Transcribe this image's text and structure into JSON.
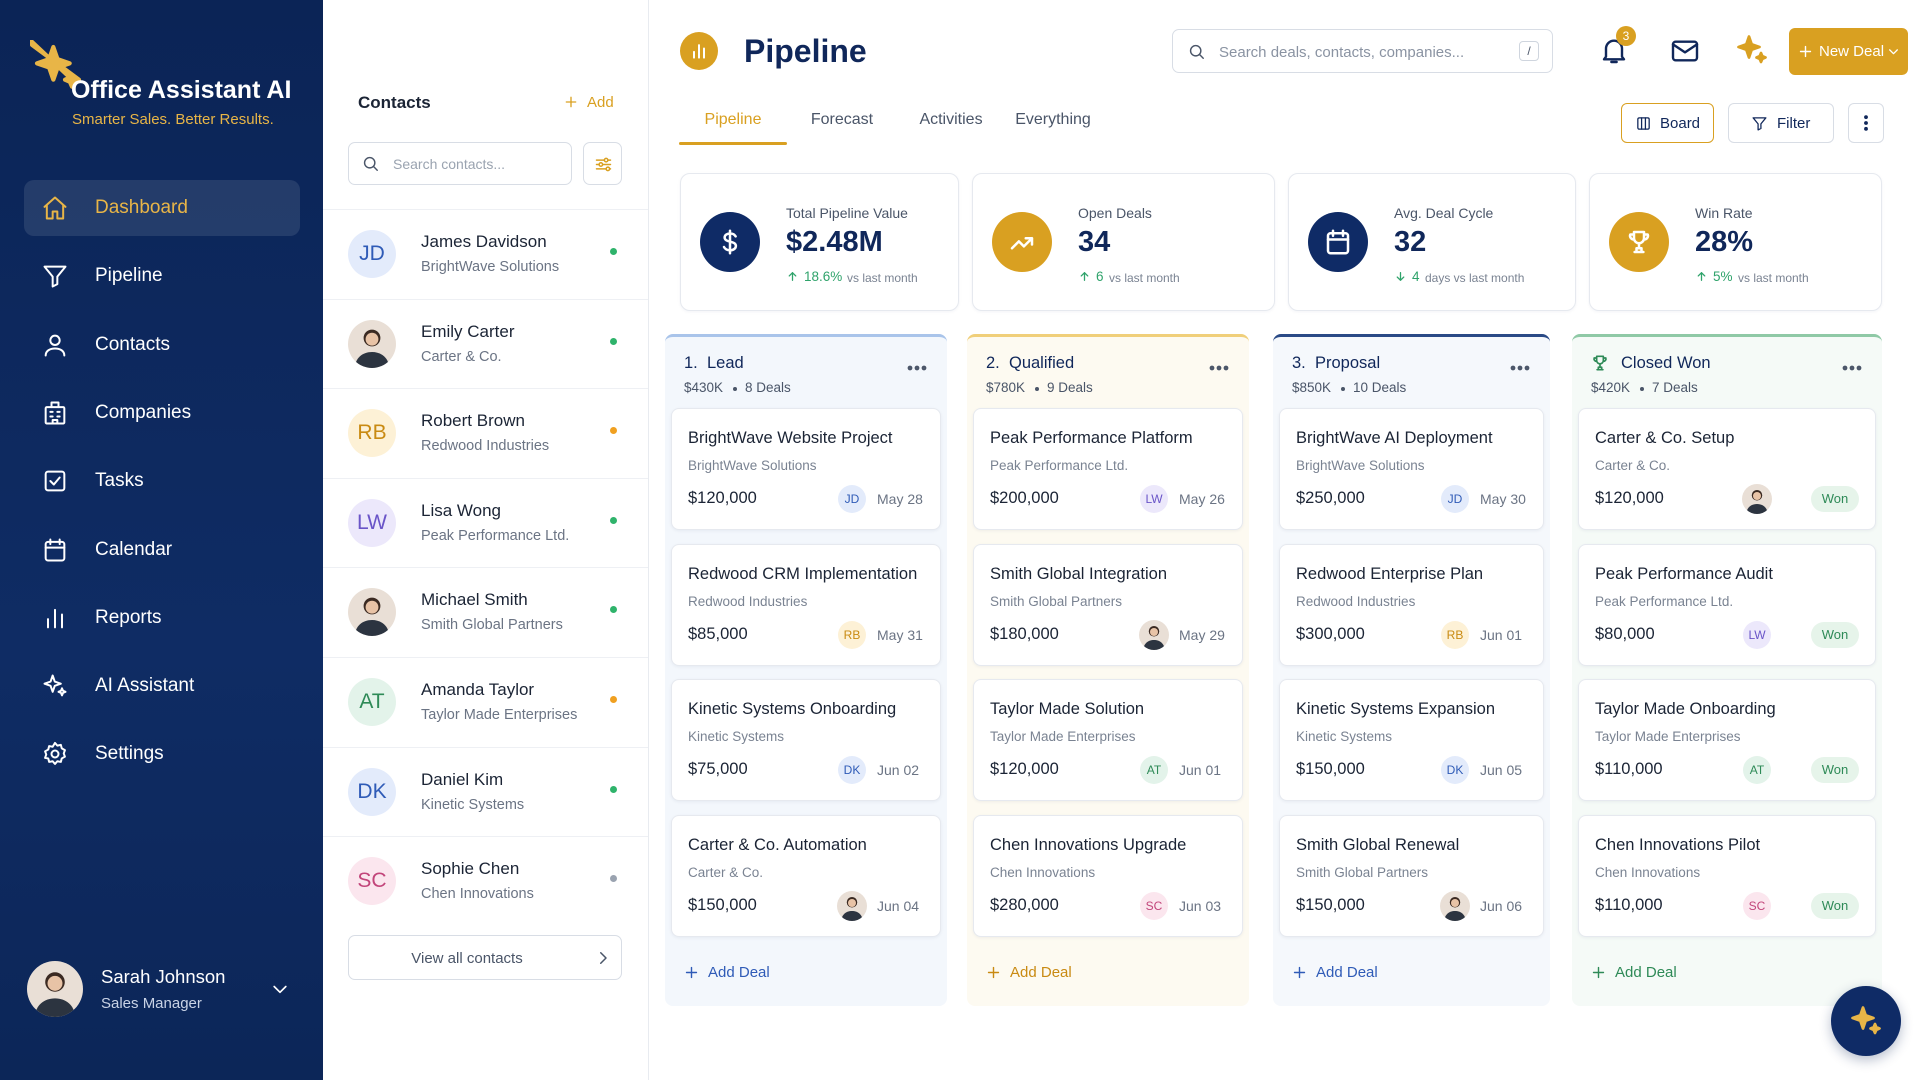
{
  "brand": {
    "name": "Office Assistant AI",
    "tagline": "Smarter Sales. Better Results."
  },
  "nav": [
    {
      "label": "Dashboard",
      "active": true
    },
    {
      "label": "Pipeline"
    },
    {
      "label": "Contacts"
    },
    {
      "label": "Companies"
    },
    {
      "label": "Tasks"
    },
    {
      "label": "Calendar"
    },
    {
      "label": "Reports"
    },
    {
      "label": "AI Assistant"
    },
    {
      "label": "Settings"
    }
  ],
  "user": {
    "name": "Sarah Johnson",
    "role": "Sales Manager"
  },
  "contacts": {
    "title": "Contacts",
    "add": "Add",
    "search_placeholder": "Search contacts...",
    "view_all": "View all contacts",
    "items": [
      {
        "initials": "JD",
        "name": "James Davidson",
        "company": "BrightWave Solutions",
        "status_color": "#2fb36b",
        "avatar_bg": "#e3ebfb",
        "avatar_fg": "#2f5bb7"
      },
      {
        "name": "Emily Carter",
        "company": "Carter & Co.",
        "status_color": "#2fb36b"
      },
      {
        "initials": "RB",
        "name": "Robert Brown",
        "company": "Redwood Industries",
        "status_color": "#f0a020",
        "avatar_bg": "#fdf1d6",
        "avatar_fg": "#c98a12"
      },
      {
        "initials": "LW",
        "name": "Lisa Wong",
        "company": "Peak Performance Ltd.",
        "status_color": "#2fb36b",
        "avatar_bg": "#ece8fb",
        "avatar_fg": "#6a55c8"
      },
      {
        "name": "Michael Smith",
        "company": "Smith Global Partners",
        "status_color": "#2fb36b"
      },
      {
        "initials": "AT",
        "name": "Amanda Taylor",
        "company": "Taylor Made Enterprises",
        "status_color": "#f0a020",
        "avatar_bg": "#e3f3ea",
        "avatar_fg": "#2e8a57"
      },
      {
        "initials": "DK",
        "name": "Daniel Kim",
        "company": "Kinetic Systems",
        "status_color": "#2fb36b",
        "avatar_bg": "#e3ebfb",
        "avatar_fg": "#2f5bb7"
      },
      {
        "initials": "SC",
        "name": "Sophie Chen",
        "company": "Chen Innovations",
        "status_color": "#9aa3b0",
        "avatar_bg": "#fbe6ee",
        "avatar_fg": "#c2457a"
      }
    ]
  },
  "header": {
    "title": "Pipeline",
    "search_placeholder": "Search deals, contacts, companies...",
    "search_key": "/",
    "notifications": "3",
    "new_deal": "New Deal"
  },
  "tabs": [
    {
      "label": "Pipeline",
      "active": true
    },
    {
      "label": "Forecast"
    },
    {
      "label": "Activities"
    },
    {
      "label": "Everything"
    }
  ],
  "view_buttons": {
    "board": "Board",
    "filter": "Filter"
  },
  "stats": [
    {
      "label": "Total Pipeline Value",
      "value": "$2.48M",
      "change": "18.6%",
      "note": "vs last month",
      "direction": "up",
      "color": "#0f2b66"
    },
    {
      "label": "Open Deals",
      "value": "34",
      "change": "6",
      "note": "vs last month",
      "direction": "up",
      "color": "#d9a021"
    },
    {
      "label": "Avg. Deal Cycle",
      "value": "32",
      "change": "4",
      "note": "days vs last month",
      "direction": "down",
      "color": "#0f2b66"
    },
    {
      "label": "Win Rate",
      "value": "28%",
      "change": "5%",
      "note": "vs last month",
      "direction": "up",
      "color": "#d9a021"
    }
  ],
  "columns": [
    {
      "number": "1.",
      "title": "Lead",
      "total": "$430K",
      "count": "8 Deals",
      "accent": "#a9c4ea",
      "tint": "#f3f7fc",
      "add": "Add Deal",
      "add_color": "#2f5bb7",
      "deals": [
        {
          "name": "BrightWave Website Project",
          "company": "BrightWave Solutions",
          "amount": "$120,000",
          "initials": "JD",
          "date": "May 28"
        },
        {
          "name": "Redwood CRM Implementation",
          "company": "Redwood Industries",
          "amount": "$85,000",
          "initials": "RB",
          "date": "May 31"
        },
        {
          "name": "Kinetic Systems Onboarding",
          "company": "Kinetic Systems",
          "amount": "$75,000",
          "initials": "DK",
          "date": "Jun 02"
        },
        {
          "name": "Carter & Co. Automation",
          "company": "Carter & Co.",
          "amount": "$150,000",
          "date": "Jun 04"
        }
      ]
    },
    {
      "number": "2.",
      "title": "Qualified",
      "total": "$780K",
      "count": "9 Deals",
      "accent": "#f0cf7a",
      "tint": "#fdfaf1",
      "add": "Add Deal",
      "add_color": "#c98a12",
      "deals": [
        {
          "name": "Peak Performance Platform",
          "company": "Peak Performance Ltd.",
          "amount": "$200,000",
          "initials": "LW",
          "date": "May 26"
        },
        {
          "name": "Smith Global Integration",
          "company": "Smith Global Partners",
          "amount": "$180,000",
          "date": "May 29"
        },
        {
          "name": "Taylor Made Solution",
          "company": "Taylor Made Enterprises",
          "amount": "$120,000",
          "initials": "AT",
          "date": "Jun 01"
        },
        {
          "name": "Chen Innovations Upgrade",
          "company": "Chen Innovations",
          "amount": "$280,000",
          "initials": "SC",
          "date": "Jun 03"
        }
      ]
    },
    {
      "number": "3.",
      "title": "Proposal",
      "total": "$850K",
      "count": "10 Deals",
      "accent": "#2a4a86",
      "tint": "#f5f8fc",
      "add": "Add Deal",
      "add_color": "#2f5bb7",
      "deals": [
        {
          "name": "BrightWave AI Deployment",
          "company": "BrightWave Solutions",
          "amount": "$250,000",
          "initials": "JD",
          "date": "May 30"
        },
        {
          "name": "Redwood Enterprise Plan",
          "company": "Redwood Industries",
          "amount": "$300,000",
          "initials": "RB",
          "date": "Jun 01"
        },
        {
          "name": "Kinetic Systems Expansion",
          "company": "Kinetic Systems",
          "amount": "$150,000",
          "initials": "DK",
          "date": "Jun 05"
        },
        {
          "name": "Smith Global Renewal",
          "company": "Smith Global Partners",
          "amount": "$150,000",
          "date": "Jun 06"
        }
      ]
    },
    {
      "title": "Closed Won",
      "total": "$420K",
      "count": "7 Deals",
      "accent": "#8fc9a6",
      "tint": "#f5faf7",
      "add": "Add Deal",
      "add_color": "#2e8a57",
      "deals": [
        {
          "name": "Carter & Co. Setup",
          "company": "Carter & Co.",
          "amount": "$120,000",
          "status": "Won"
        },
        {
          "name": "Peak Performance Audit",
          "company": "Peak Performance Ltd.",
          "amount": "$80,000",
          "initials": "LW",
          "status": "Won"
        },
        {
          "name": "Taylor Made Onboarding",
          "company": "Taylor Made Enterprises",
          "amount": "$110,000",
          "initials": "AT",
          "status": "Won"
        },
        {
          "name": "Chen Innovations Pilot",
          "company": "Chen Innovations",
          "amount": "$110,000",
          "initials": "SC",
          "status": "Won"
        }
      ]
    }
  ]
}
